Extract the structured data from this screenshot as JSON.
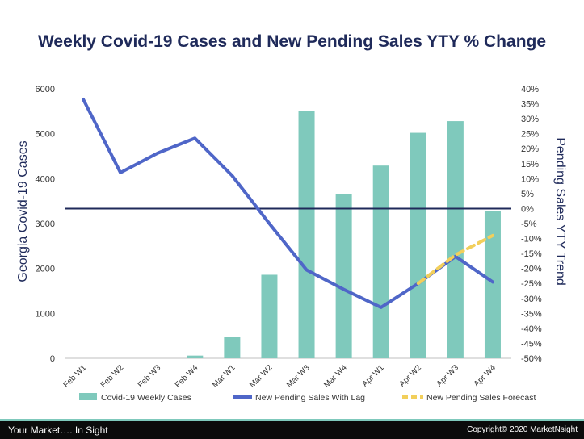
{
  "chart_data": {
    "type": "bar+line",
    "title": "Weekly Covid-19 Cases and New Pending Sales YTY % Change",
    "categories": [
      "Feb W1",
      "Feb W2",
      "Feb W3",
      "Feb W4",
      "Mar W1",
      "Mar W2",
      "Mar W3",
      "Mar W4",
      "Apr W1",
      "Apr W2",
      "Apr W3",
      "Apr W4"
    ],
    "y_left": {
      "label": "Georgia Covid-19 Cases",
      "range": [
        0,
        6000
      ],
      "ticks": [
        "0",
        "1000",
        "2000",
        "3000",
        "4000",
        "5000",
        "6000"
      ]
    },
    "y_right": {
      "label": "Pending Sales YTY  Trend",
      "range": [
        -50,
        40
      ],
      "ticks": [
        "-50%",
        "-45%",
        "-40%",
        "-35%",
        "-30%",
        "-25%",
        "-20%",
        "-15%",
        "-10%",
        "-5%",
        "0%",
        "5%",
        "10%",
        "15%",
        "20%",
        "25%",
        "30%",
        "35%",
        "40%"
      ]
    },
    "reference_line_right": 0,
    "series": [
      {
        "name": "Covid-19 Weekly Cases",
        "kind": "bar",
        "axis": "left",
        "color": "#7fc9bc",
        "values": [
          0,
          0,
          0,
          60,
          480,
          1860,
          5500,
          3660,
          4290,
          5020,
          5280,
          3280
        ]
      },
      {
        "name": "New Pending Sales With Lag",
        "kind": "line",
        "axis": "right",
        "color": "#4f66c8",
        "values": [
          36.5,
          12,
          18.5,
          23.5,
          11,
          -5,
          -20.5,
          -27,
          -33,
          -25,
          -16,
          -24.5
        ]
      },
      {
        "name": "New Pending Sales Forecast",
        "kind": "dashed-line",
        "axis": "right",
        "color": "#f2cf5b",
        "x": [
          "Apr W2",
          "Apr W3",
          "Apr W4"
        ],
        "values": [
          -25,
          -15.5,
          -9
        ]
      }
    ],
    "legend_position": "bottom"
  },
  "footer": {
    "left_text": "Your Market….  In Sight",
    "right_text": "Copyright© 2020 MarketNsight"
  }
}
